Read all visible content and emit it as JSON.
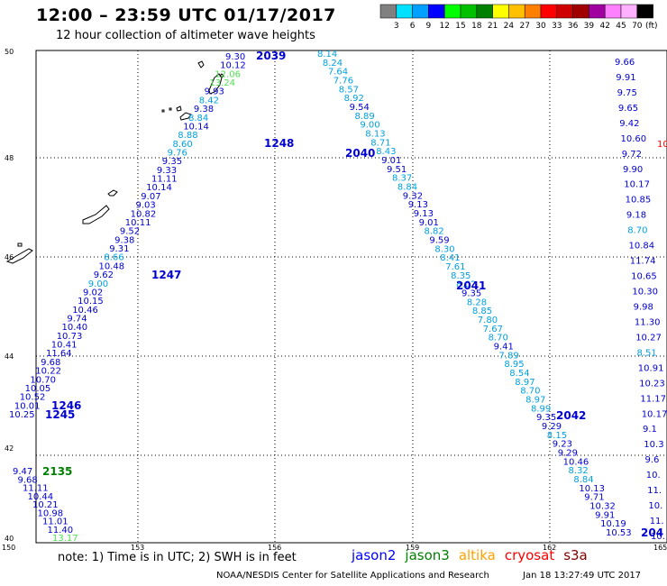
{
  "title": "12:00 – 23:59 UTC 01/17/2017",
  "subtitle": "12 hour collection of altimeter wave heights",
  "colorbar": {
    "labels": [
      "3",
      "6",
      "9",
      "12",
      "15",
      "18",
      "21",
      "24",
      "27",
      "30",
      "33",
      "36",
      "39",
      "42",
      "45",
      "70"
    ],
    "unit": "(ft)",
    "colors": [
      "#808080",
      "#00e0ff",
      "#00a0ff",
      "#0000ff",
      "#00ff00",
      "#00c000",
      "#008000",
      "#ffff00",
      "#ffc000",
      "#ff8000",
      "#ff0000",
      "#d00000",
      "#a00000",
      "#a000a0",
      "#ff80ff",
      "#ffb0ff",
      "#000000"
    ]
  },
  "axes": {
    "lon_ticks": [
      "150",
      "153",
      "156",
      "159",
      "162",
      "165"
    ],
    "lat_ticks": [
      "50",
      "48",
      "46",
      "44",
      "42",
      "40"
    ]
  },
  "passes": {
    "labels": [
      {
        "id": "p2039",
        "text": "2039",
        "color": "#0000d0"
      },
      {
        "id": "p1248",
        "text": "1248",
        "color": "#0000d0"
      },
      {
        "id": "p2040",
        "text": "2040",
        "color": "#0000d0"
      },
      {
        "id": "p1247",
        "text": "1247",
        "color": "#0000d0"
      },
      {
        "id": "p2041",
        "text": "2041",
        "color": "#0000d0"
      },
      {
        "id": "p1246",
        "text": "1246",
        "color": "#0000d0"
      },
      {
        "id": "p1245",
        "text": "1245",
        "color": "#0000d0"
      },
      {
        "id": "p2042",
        "text": "2042",
        "color": "#0000d0"
      },
      {
        "id": "p2135",
        "text": "2135",
        "color": "#008000"
      },
      {
        "id": "p204x",
        "text": "204",
        "color": "#0000d0"
      }
    ]
  },
  "track_a": {
    "values": [
      "9.30",
      "10.12",
      "12.06",
      "13.24",
      "9.93",
      "8.42",
      "9.38",
      "8.84",
      "10.14",
      "8.88",
      "8.60",
      "9.76",
      "9.35",
      "9.33",
      "11.11",
      "10.14",
      "9.07",
      "9.03",
      "10.82",
      "10.11",
      "9.52",
      "9.38",
      "9.31",
      "8.66",
      "10.48",
      "9.62",
      "9.00",
      "9.02",
      "10.15",
      "10.46",
      "9.74",
      "10.40",
      "10.73",
      "10.41",
      "11.64",
      "9.68",
      "10.22",
      "10.70",
      "10.05",
      "10.52",
      "10.01",
      "10.25"
    ],
    "colors": [
      "#0000d0",
      "#0000d0",
      "#50e050",
      "#50e050",
      "#0000d0",
      "#00a0e0",
      "#0000d0",
      "#00a0e0",
      "#0000d0",
      "#00a0e0",
      "#00a0e0",
      "#00a0e0",
      "#0000d0",
      "#0000d0",
      "#0000d0",
      "#0000d0",
      "#0000d0",
      "#0000d0",
      "#0000d0",
      "#0000d0",
      "#0000d0",
      "#0000d0",
      "#0000d0",
      "#00a0e0",
      "#0000d0",
      "#0000d0",
      "#00a0e0",
      "#0000d0",
      "#0000d0",
      "#0000d0",
      "#0000d0",
      "#0000d0",
      "#0000d0",
      "#0000d0",
      "#0000d0",
      "#0000d0",
      "#0000d0",
      "#0000d0",
      "#0000d0",
      "#0000d0",
      "#0000d0",
      "#0000d0"
    ]
  },
  "track_b": {
    "values": [
      "8.14",
      "8.24",
      "7.64",
      "7.76",
      "8.57",
      "8.92",
      "9.54",
      "8.89",
      "9.00",
      "8.13",
      "8.71",
      "8.43",
      "9.01",
      "9.51",
      "8.37",
      "8.84",
      "9.32",
      "9.13",
      "9.13",
      "9.01",
      "8.82",
      "9.59",
      "8.30",
      "8.41",
      "7.61",
      "8.35",
      "8.02",
      "9.35",
      "8.28",
      "8.85",
      "7.80",
      "7.67",
      "8.70",
      "9.41",
      "7.89",
      "8.95",
      "8.54",
      "8.97",
      "8.70",
      "8.97",
      "8.99",
      "9.35",
      "9.29",
      "8.15",
      "9.23",
      "9.29",
      "10.46",
      "8.32",
      "8.84",
      "10.13",
      "9.71",
      "10.32",
      "9.91",
      "10.19",
      "10.53"
    ],
    "colors": [
      "#00a0e0",
      "#00a0e0",
      "#00a0e0",
      "#00a0e0",
      "#00a0e0",
      "#00a0e0",
      "#0000d0",
      "#00a0e0",
      "#00a0e0",
      "#00a0e0",
      "#00a0e0",
      "#00a0e0",
      "#0000d0",
      "#0000d0",
      "#00a0e0",
      "#00a0e0",
      "#0000d0",
      "#0000d0",
      "#0000d0",
      "#0000d0",
      "#00a0e0",
      "#0000d0",
      "#00a0e0",
      "#00a0e0",
      "#00a0e0",
      "#00a0e0",
      "#00a0e0",
      "#0000d0",
      "#00a0e0",
      "#00a0e0",
      "#00a0e0",
      "#00a0e0",
      "#00a0e0",
      "#0000d0",
      "#00a0e0",
      "#00a0e0",
      "#00a0e0",
      "#00a0e0",
      "#00a0e0",
      "#00a0e0",
      "#00a0e0",
      "#0000d0",
      "#0000d0",
      "#00a0e0",
      "#0000d0",
      "#0000d0",
      "#0000d0",
      "#00a0e0",
      "#00a0e0",
      "#0000d0",
      "#0000d0",
      "#0000d0",
      "#0000d0",
      "#0000d0",
      "#0000d0"
    ]
  },
  "track_c": {
    "values": [
      "9.47",
      "9.68",
      "11.11",
      "10.44",
      "10.21",
      "10.98",
      "11.01",
      "11.40",
      "13.17"
    ],
    "colors": [
      "#0000d0",
      "#0000d0",
      "#0000d0",
      "#0000d0",
      "#0000d0",
      "#0000d0",
      "#0000d0",
      "#0000d0",
      "#50e050"
    ]
  },
  "track_d": {
    "values": [
      "9.66",
      "9.91",
      "9.75",
      "9.65",
      "9.42",
      "10.60",
      "9.72",
      "9.90",
      "10.17",
      "10.85",
      "9.18",
      "8.70",
      "10.84",
      "11.74",
      "10.65",
      "10.30",
      "9.98",
      "11.30",
      "10.27",
      "8.51",
      "10.91",
      "10.23",
      "11.17",
      "10.17",
      "9.1",
      "10.3",
      "9.6",
      "10.",
      "11.",
      "10.",
      "11.",
      "10."
    ],
    "colors": [
      "#0000d0",
      "#0000d0",
      "#0000d0",
      "#0000d0",
      "#0000d0",
      "#0000d0",
      "#0000d0",
      "#0000d0",
      "#0000d0",
      "#0000d0",
      "#0000d0",
      "#00a0e0",
      "#0000d0",
      "#0000d0",
      "#0000d0",
      "#0000d0",
      "#0000d0",
      "#0000d0",
      "#0000d0",
      "#00a0e0",
      "#0000d0",
      "#0000d0",
      "#0000d0",
      "#0000d0",
      "#0000d0",
      "#0000d0",
      "#0000d0",
      "#0000d0",
      "#0000d0",
      "#0000d0",
      "#0000d0",
      "#0000d0"
    ]
  },
  "edge_red": {
    "text": "10",
    "color": "#ff0000"
  },
  "footer": {
    "note": "note:  1) Time is in UTC;  2) SWH is in feet",
    "legend": [
      {
        "name": "jason2",
        "color": "#0000ff"
      },
      {
        "name": "jason3",
        "color": "#008000"
      },
      {
        "name": "altika",
        "color": "#ffa000"
      },
      {
        "name": "cryosat",
        "color": "#ff0000"
      },
      {
        "name": "s3a",
        "color": "#800000"
      }
    ],
    "credit": "NOAA/NESDIS Center for Satellite Applications and Research",
    "timestamp": "Jan 18 13:27:49 UTC 2017"
  }
}
